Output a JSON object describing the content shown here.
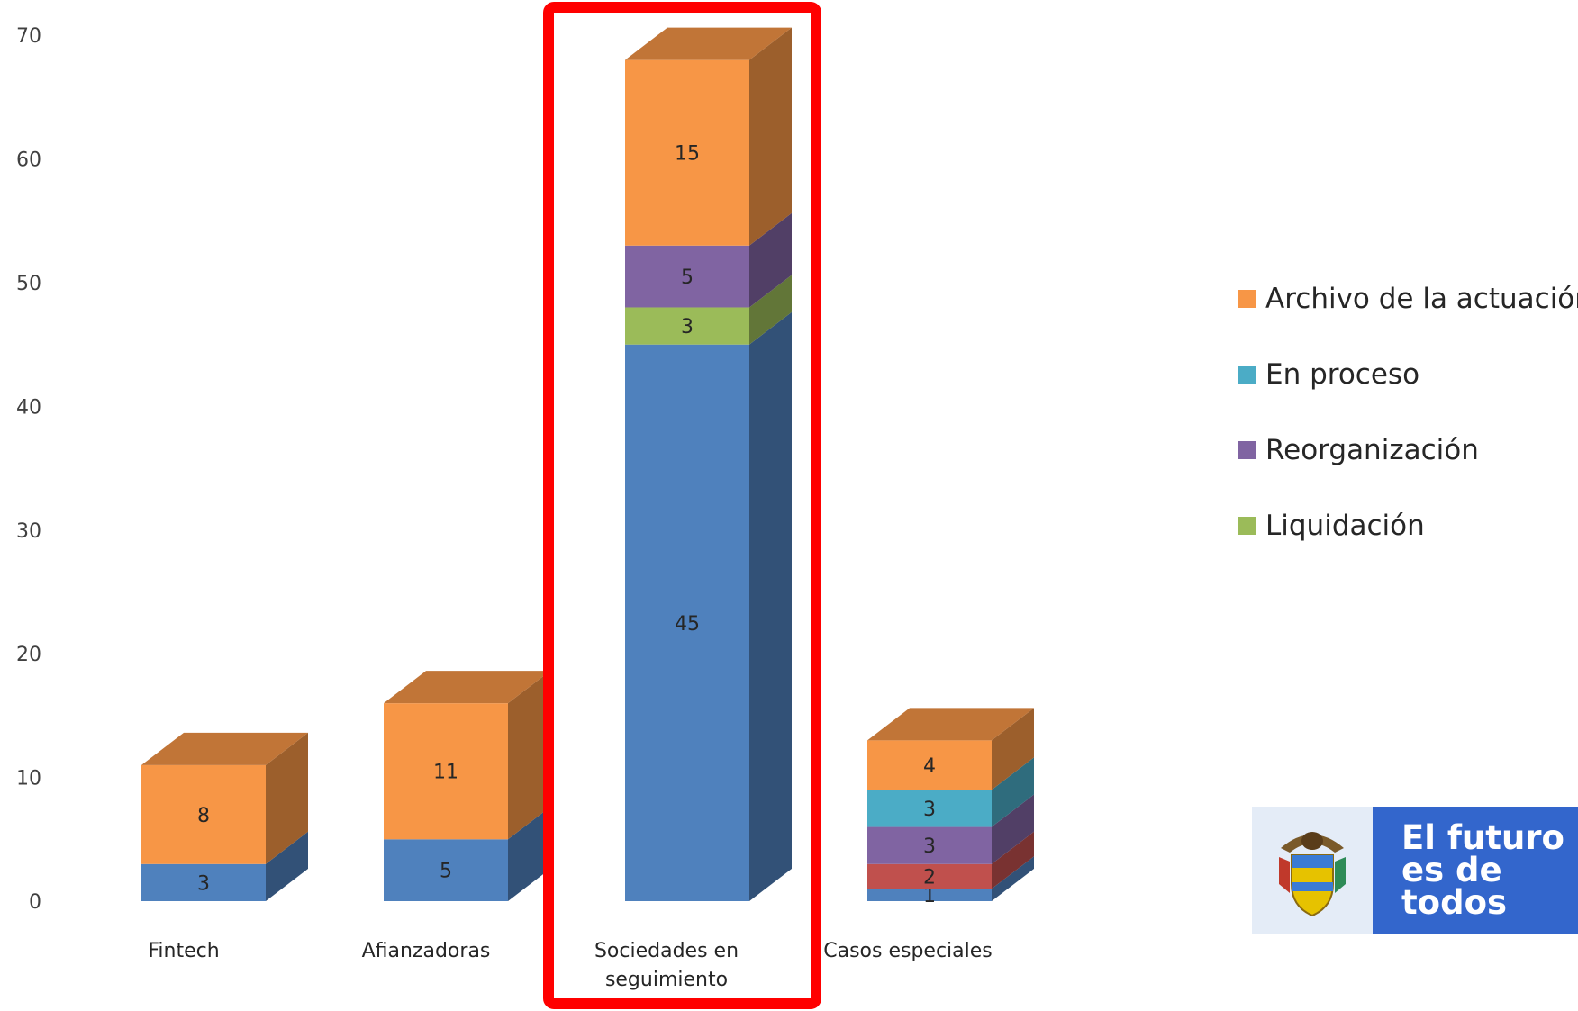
{
  "chart_data": {
    "type": "bar",
    "stacked": true,
    "style": "3d-column",
    "categories": [
      "Fintech",
      "Afianzadoras",
      "Sociedades en seguimiento",
      "Casos especiales"
    ],
    "category_label_lines": [
      [
        "Fintech"
      ],
      [
        "Afianzadoras"
      ],
      [
        "Sociedades en",
        "seguimiento"
      ],
      [
        "Casos especiales"
      ]
    ],
    "series": [
      {
        "name": "",
        "values": [
          3,
          5,
          45,
          1
        ],
        "color": "#4f81bd"
      },
      {
        "name": "",
        "values": [
          0,
          0,
          0,
          2
        ],
        "color": "#c0504d"
      },
      {
        "name": "Liquidación",
        "values": [
          0,
          0,
          3,
          0
        ],
        "color": "#9bbb59"
      },
      {
        "name": "Reorganización",
        "values": [
          0,
          0,
          5,
          3
        ],
        "color": "#8064a2"
      },
      {
        "name": "En proceso",
        "values": [
          0,
          0,
          0,
          3
        ],
        "color": "#4bacc6"
      },
      {
        "name": "Archivo de la actuación",
        "values": [
          8,
          11,
          15,
          4
        ],
        "color": "#f79646"
      }
    ],
    "y_ticks": [
      0,
      10,
      20,
      30,
      40,
      50,
      60,
      70
    ],
    "ylim": [
      0,
      70
    ],
    "grid": false,
    "legend_order": [
      "Archivo de la actuación",
      "En proceso",
      "Reorganización",
      "Liquidación"
    ],
    "legend_position": "right",
    "highlighted_category": "Sociedades en seguimiento",
    "highlight_color": "#ff0000"
  },
  "logo": {
    "line1": "El futuro",
    "line2": "es de todos"
  }
}
